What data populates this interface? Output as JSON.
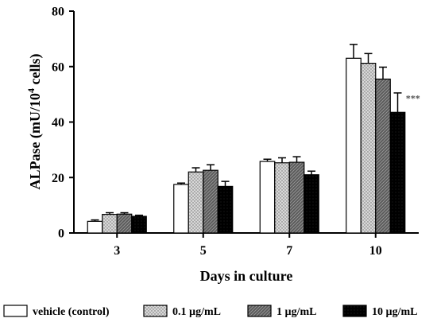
{
  "chart_data": {
    "type": "bar",
    "title": "",
    "xlabel": "Days in culture",
    "ylabel_main": "ALPase (mU/10",
    "ylabel_sup": "4",
    "ylabel_tail": " cells)",
    "ylim": [
      0,
      80
    ],
    "yticks": [
      0,
      20,
      40,
      60,
      80
    ],
    "categories": [
      "3",
      "5",
      "7",
      "10"
    ],
    "series": [
      {
        "name": "vehicle (control)",
        "fill": "white",
        "values": [
          4.2,
          17.5,
          25.8,
          63.0
        ],
        "errors": [
          0.5,
          0.5,
          0.8,
          5.0
        ]
      },
      {
        "name": "0.1 µg/mL",
        "fill": "dots",
        "values": [
          6.7,
          22.0,
          25.3,
          61.2
        ],
        "errors": [
          0.6,
          1.5,
          1.8,
          3.5
        ]
      },
      {
        "name": "1 µg/mL",
        "fill": "hatch",
        "values": [
          6.8,
          22.6,
          25.5,
          55.5
        ],
        "errors": [
          0.5,
          2.0,
          2.0,
          4.3
        ]
      },
      {
        "name": "10 µg/mL",
        "fill": "black",
        "values": [
          6.0,
          16.8,
          21.0,
          43.5
        ],
        "errors": [
          0.4,
          1.8,
          1.3,
          7.0
        ]
      }
    ],
    "annotations": [
      {
        "category": "10",
        "series": "10 µg/mL",
        "text": "***"
      }
    ],
    "legend_position": "bottom",
    "grid": false
  }
}
